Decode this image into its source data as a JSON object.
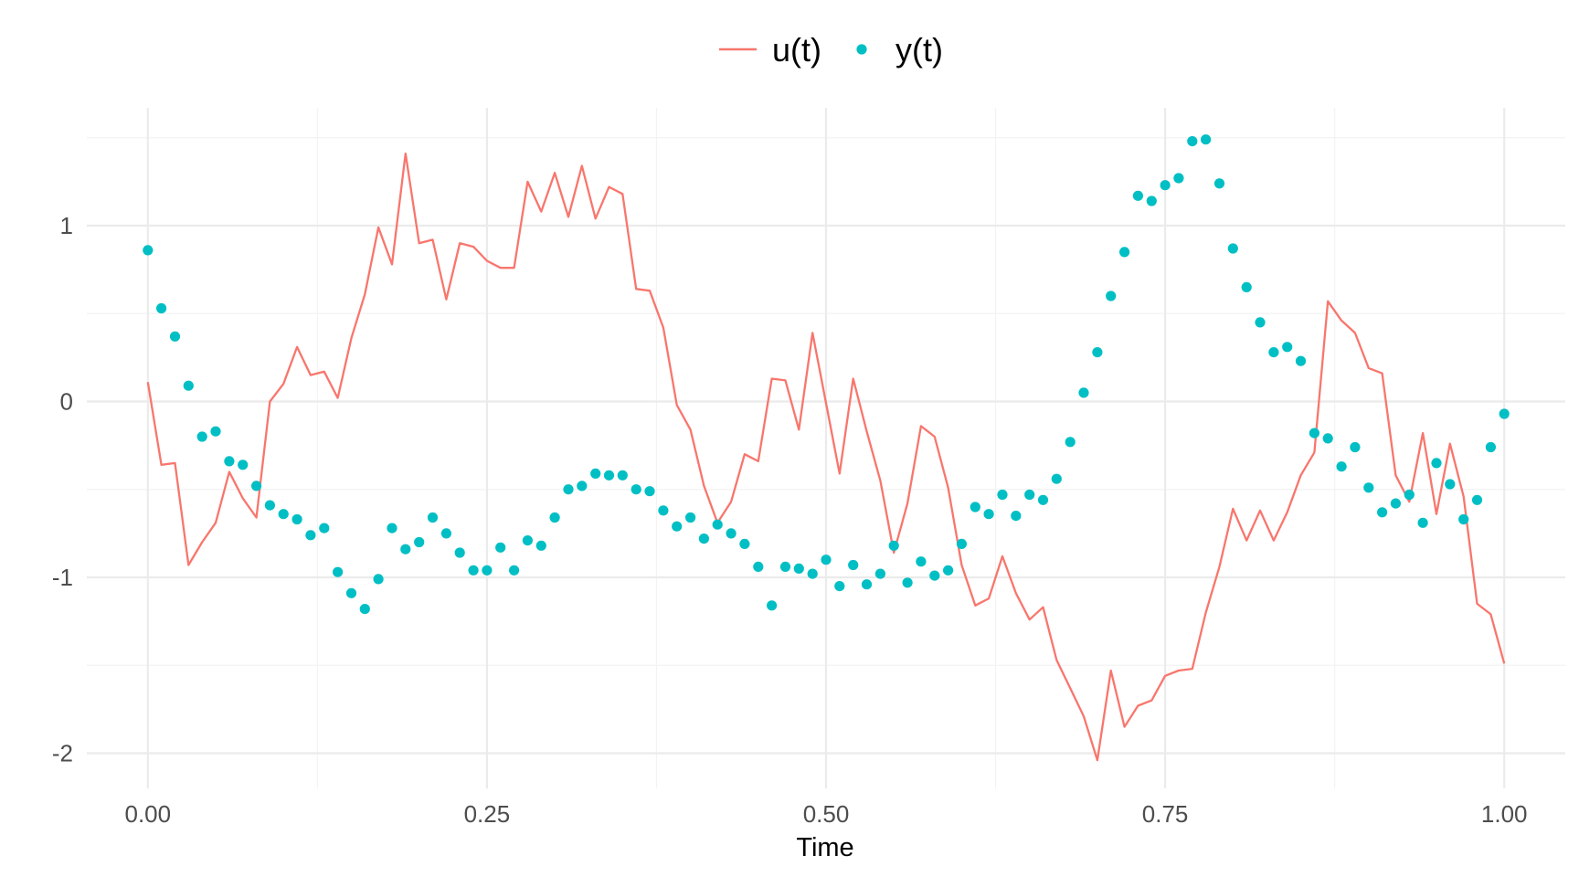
{
  "chart_data": {
    "type": "line",
    "title": "",
    "xlabel": "Time",
    "ylabel": "",
    "xlim": [
      -0.045,
      1.045
    ],
    "ylim": [
      -2.2,
      1.67
    ],
    "x_ticks": [
      0,
      0.25,
      0.5,
      0.75,
      1
    ],
    "x_tick_labels": [
      "0.00",
      "0.25",
      "0.50",
      "0.75",
      "1.00"
    ],
    "y_ticks": [
      -2,
      -1,
      0,
      1
    ],
    "y_tick_labels": [
      "-2",
      "-1",
      "0",
      "1"
    ],
    "grid": true,
    "legend": "top",
    "x": [
      0,
      0.01,
      0.02,
      0.03,
      0.04,
      0.05,
      0.06,
      0.07,
      0.08,
      0.09,
      0.1,
      0.11,
      0.12,
      0.13,
      0.14,
      0.15,
      0.16,
      0.17,
      0.18,
      0.19,
      0.2,
      0.21,
      0.22,
      0.23,
      0.24,
      0.25,
      0.26,
      0.27,
      0.28,
      0.29,
      0.3,
      0.31,
      0.32,
      0.33,
      0.34,
      0.35,
      0.36,
      0.37,
      0.38,
      0.39,
      0.4,
      0.41,
      0.42,
      0.43,
      0.44,
      0.45,
      0.46,
      0.47,
      0.48,
      0.49,
      0.5,
      0.51,
      0.52,
      0.53,
      0.54,
      0.55,
      0.56,
      0.57,
      0.58,
      0.59,
      0.6,
      0.61,
      0.62,
      0.63,
      0.64,
      0.65,
      0.66,
      0.67,
      0.68,
      0.69,
      0.7,
      0.71,
      0.72,
      0.73,
      0.74,
      0.75,
      0.76,
      0.77,
      0.78,
      0.79,
      0.8,
      0.81,
      0.82,
      0.83,
      0.84,
      0.85,
      0.86,
      0.87,
      0.88,
      0.89,
      0.9,
      0.91,
      0.92,
      0.93,
      0.94,
      0.95,
      0.96,
      0.97,
      0.98,
      0.99,
      1.0
    ],
    "series": [
      {
        "name": "u(t)",
        "kind": "line",
        "color": "#F8766D",
        "values": [
          0.11,
          -0.36,
          -0.35,
          -0.93,
          -0.8,
          -0.69,
          -0.4,
          -0.55,
          -0.66,
          0.0,
          0.1,
          0.31,
          0.15,
          0.17,
          0.02,
          0.36,
          0.61,
          0.99,
          0.78,
          1.41,
          0.9,
          0.92,
          0.58,
          0.9,
          0.88,
          0.8,
          0.76,
          0.76,
          1.25,
          1.08,
          1.3,
          1.05,
          1.34,
          1.04,
          1.22,
          1.18,
          0.64,
          0.63,
          0.42,
          -0.02,
          -0.16,
          -0.48,
          -0.69,
          -0.57,
          -0.3,
          -0.34,
          0.13,
          0.12,
          -0.16,
          0.39,
          -0.01,
          -0.41,
          0.13,
          -0.17,
          -0.45,
          -0.86,
          -0.58,
          -0.14,
          -0.2,
          -0.49,
          -0.93,
          -1.16,
          -1.12,
          -0.88,
          -1.09,
          -1.24,
          -1.17,
          -1.47,
          -1.63,
          -1.79,
          -2.04,
          -1.53,
          -1.85,
          -1.73,
          -1.7,
          -1.56,
          -1.53,
          -1.52,
          -1.2,
          -0.94,
          -0.61,
          -0.79,
          -0.62,
          -0.79,
          -0.63,
          -0.42,
          -0.29,
          0.57,
          0.46,
          0.39,
          0.19,
          0.16,
          -0.42,
          -0.57,
          -0.18,
          -0.64,
          -0.24,
          -0.54,
          -1.15,
          -1.21,
          -1.49
        ]
      },
      {
        "name": "y(t)",
        "kind": "point",
        "color": "#00BFC4",
        "values": [
          0.86,
          0.53,
          0.37,
          0.09,
          -0.2,
          -0.17,
          -0.34,
          -0.36,
          -0.48,
          -0.59,
          -0.64,
          -0.67,
          -0.76,
          -0.72,
          -0.97,
          -1.09,
          -1.18,
          -1.01,
          -0.72,
          -0.84,
          -0.8,
          -0.66,
          -0.75,
          -0.86,
          -0.96,
          -0.96,
          -0.83,
          -0.96,
          -0.79,
          -0.82,
          -0.66,
          -0.5,
          -0.48,
          -0.41,
          -0.42,
          -0.42,
          -0.5,
          -0.51,
          -0.62,
          -0.71,
          -0.66,
          -0.78,
          -0.7,
          -0.75,
          -0.81,
          -0.94,
          -1.16,
          -0.94,
          -0.95,
          -0.98,
          -0.9,
          -1.05,
          -0.93,
          -1.04,
          -0.98,
          -0.82,
          -1.03,
          -0.91,
          -0.99,
          -0.96,
          -0.81,
          -0.6,
          -0.64,
          -0.53,
          -0.65,
          -0.53,
          -0.56,
          -0.44,
          -0.23,
          0.05,
          0.28,
          0.6,
          0.85,
          1.17,
          1.14,
          1.23,
          1.27,
          1.48,
          1.49,
          1.24,
          0.87,
          0.65,
          0.45,
          0.28,
          0.31,
          0.23,
          -0.18,
          -0.21,
          -0.37,
          -0.26,
          -0.49,
          -0.63,
          -0.58,
          -0.53,
          -0.69,
          -0.35,
          -0.47,
          -0.67,
          -0.56,
          -0.26,
          -0.07
        ]
      }
    ]
  }
}
